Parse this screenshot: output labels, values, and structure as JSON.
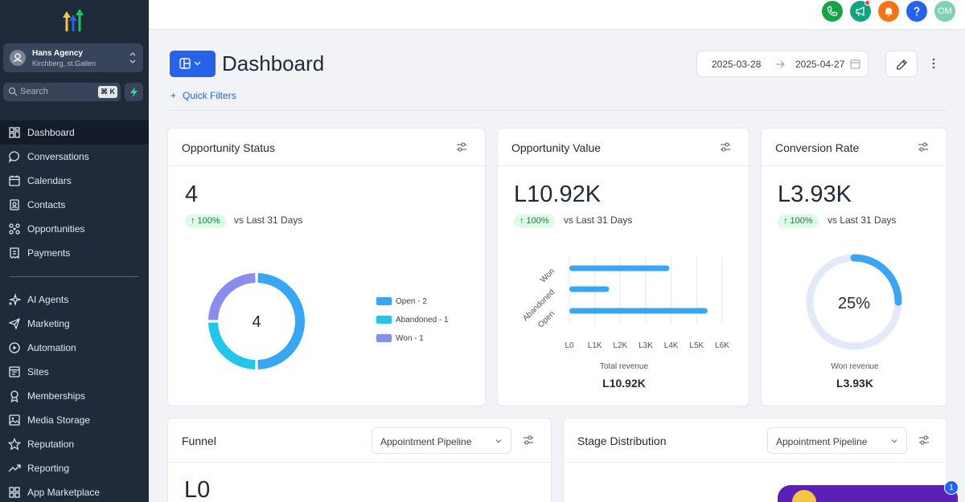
{
  "colors": {
    "sidebar_bg": "#1f2a3a",
    "accent": "#2563eb",
    "open": "#38a5f5",
    "abandoned": "#22c6e8",
    "won": "#8b8cf0"
  },
  "sidebar": {
    "agency_name": "Hans Agency",
    "agency_location": "Kirchberg, st.Gallen",
    "search_placeholder": "Search",
    "search_shortcut": "⌘ K",
    "items": [
      {
        "label": "Dashboard",
        "icon": "dashboard-icon"
      },
      {
        "label": "Conversations",
        "icon": "chat-icon"
      },
      {
        "label": "Calendars",
        "icon": "calendar-icon"
      },
      {
        "label": "Contacts",
        "icon": "contacts-icon"
      },
      {
        "label": "Opportunities",
        "icon": "opportunities-icon"
      },
      {
        "label": "Payments",
        "icon": "payments-icon"
      },
      {
        "label": "AI Agents",
        "icon": "sparkle-icon"
      },
      {
        "label": "Marketing",
        "icon": "send-icon"
      },
      {
        "label": "Automation",
        "icon": "automation-icon"
      },
      {
        "label": "Sites",
        "icon": "sites-icon"
      },
      {
        "label": "Memberships",
        "icon": "membership-icon"
      },
      {
        "label": "Media Storage",
        "icon": "image-icon"
      },
      {
        "label": "Reputation",
        "icon": "star-icon"
      },
      {
        "label": "Reporting",
        "icon": "trend-icon"
      },
      {
        "label": "App Marketplace",
        "icon": "grid-icon"
      }
    ]
  },
  "topbar": {
    "avatar_initials": "OM"
  },
  "header": {
    "title": "Dashboard",
    "date_start": "2025-03-28",
    "date_end": "2025-04-27",
    "quick_filters": "Quick Filters"
  },
  "cards": {
    "opportunity_status": {
      "title": "Opportunity Status",
      "value": "4",
      "change": "↑ 100%",
      "compare": "vs Last 31 Days",
      "donut_center": "4",
      "legend": [
        "Open - 2",
        "Abandoned - 1",
        "Won - 1"
      ]
    },
    "opportunity_value": {
      "title": "Opportunity Value",
      "value": "L10.92K",
      "change": "↑ 100%",
      "compare": "vs Last 31 Days",
      "axis_caption": "Total revenue",
      "total": "L10.92K"
    },
    "conversion_rate": {
      "title": "Conversion Rate",
      "value": "L3.93K",
      "change": "↑ 100%",
      "compare": "vs Last 31 Days",
      "gauge_center": "25%",
      "gauge_value": 0.25,
      "caption": "Won revenue",
      "total": "L3.93K"
    },
    "funnel": {
      "title": "Funnel",
      "pipeline": "Appointment Pipeline",
      "value": "L0"
    },
    "stage_distribution": {
      "title": "Stage Distribution",
      "pipeline": "Appointment Pipeline"
    }
  },
  "notification_count": "1",
  "chart_data": [
    {
      "type": "pie",
      "title": "Opportunity Status",
      "categories": [
        "Open",
        "Abandoned",
        "Won"
      ],
      "values": [
        2,
        1,
        1
      ]
    },
    {
      "type": "bar",
      "orientation": "horizontal",
      "title": "Opportunity Value",
      "categories": [
        "Won",
        "Abandoned",
        "Open"
      ],
      "values": [
        3930,
        1560,
        5430
      ],
      "xlabel": "Total revenue",
      "xticks": [
        "L0",
        "L1K",
        "L2K",
        "L3K",
        "L4K",
        "L5K",
        "L6K"
      ],
      "xlim": [
        0,
        6000
      ]
    }
  ]
}
